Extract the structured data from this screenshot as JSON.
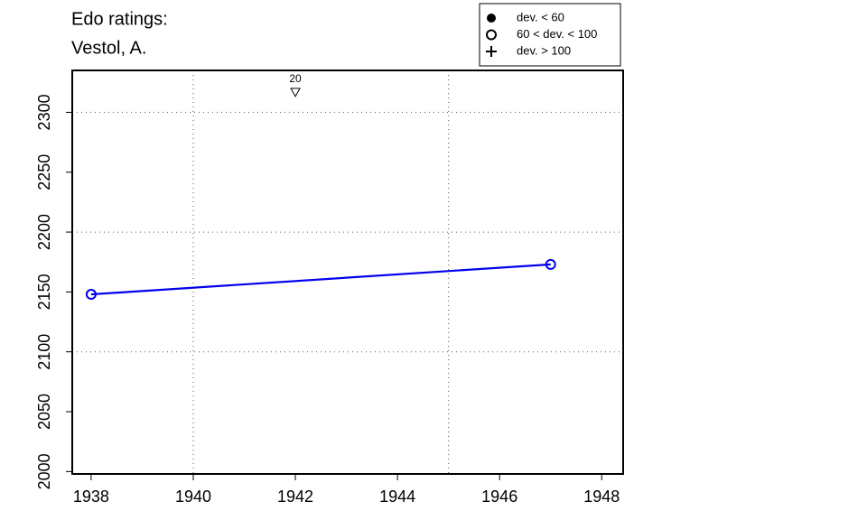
{
  "chart_data": {
    "type": "line",
    "title": [
      "Edo ratings:",
      "Vestol, A."
    ],
    "x": [
      1938,
      1947
    ],
    "series": [
      {
        "color": "#0000ee",
        "marker": "open-circle",
        "values": [
          2148,
          2173
        ]
      }
    ],
    "xlim": [
      1937.63,
      1948.42
    ],
    "ylim": [
      1998,
      2335
    ],
    "xticks": [
      1938,
      1940,
      1942,
      1944,
      1946,
      1948
    ],
    "yticks": [
      2000,
      2050,
      2100,
      2150,
      2200,
      2250,
      2300
    ],
    "xgrid": [
      1940,
      1945
    ],
    "ygrid": [
      2100,
      2200,
      2300
    ],
    "annotations": [
      {
        "x": 1942,
        "y": 2317,
        "label": "20"
      }
    ],
    "legend": [
      {
        "label": "dev. < 60",
        "marker": "filled-circle"
      },
      {
        "label": "60 < dev. < 100",
        "marker": "open-circle"
      },
      {
        "label": "dev. > 100",
        "marker": "plus"
      }
    ]
  }
}
